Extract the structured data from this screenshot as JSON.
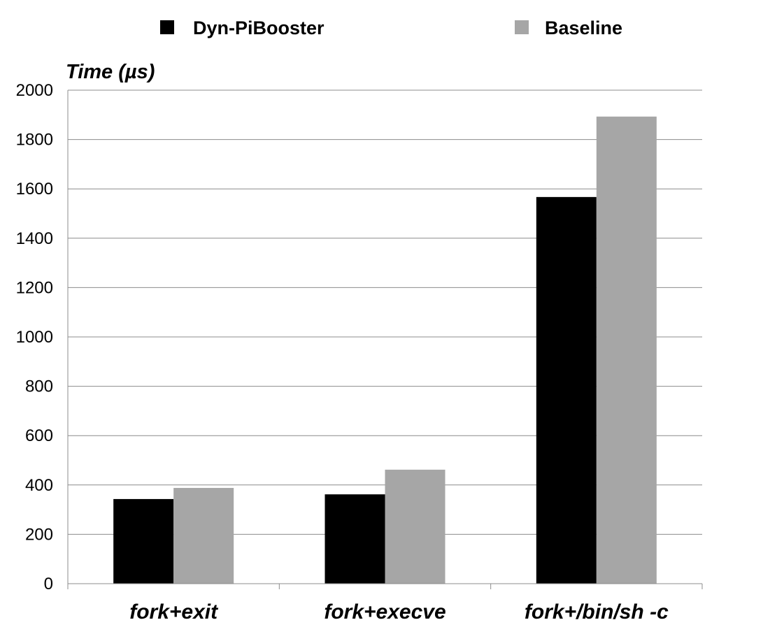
{
  "chart_data": {
    "type": "bar",
    "title": "",
    "xlabel": "",
    "ylabel": "Time (µs)",
    "categories": [
      "fork+exit",
      "fork+execve",
      "fork+/bin/sh -c"
    ],
    "series": [
      {
        "name": "Dyn-PiBooster",
        "color": "#000000",
        "values": [
          343,
          362,
          1567
        ]
      },
      {
        "name": "Baseline",
        "color": "#a6a6a6",
        "values": [
          388,
          462,
          1893
        ]
      }
    ],
    "ylim": [
      0,
      2000
    ],
    "yticks": [
      0,
      200,
      400,
      600,
      800,
      1000,
      1200,
      1400,
      1600,
      1800,
      2000
    ],
    "grid": true,
    "legend_position": "top"
  }
}
